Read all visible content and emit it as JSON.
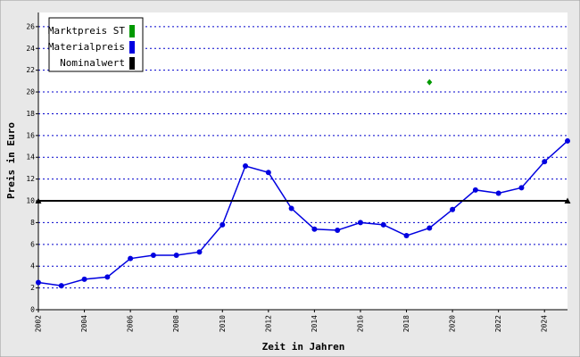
{
  "chart_data": {
    "type": "line",
    "xlabel": "Zeit in Jahren",
    "ylabel": "Preis in Euro",
    "xlim": [
      2002,
      2025
    ],
    "xticks": [
      2002,
      2004,
      2006,
      2008,
      2010,
      2012,
      2014,
      2016,
      2018,
      2020,
      2022,
      2024
    ],
    "ylim": [
      0,
      27.3
    ],
    "yticks": [
      0,
      2,
      4,
      6,
      8,
      10,
      12,
      14,
      16,
      18,
      20,
      22,
      24,
      26
    ],
    "grid": true,
    "legend": "top-left",
    "series": [
      {
        "name": "Marktpreis ST",
        "color": "#009900",
        "marker": "diamond",
        "line": false,
        "x": [
          2019
        ],
        "values": [
          20.9
        ]
      },
      {
        "name": "Materialpreis",
        "color": "#0000e0",
        "marker": "circle",
        "line": true,
        "x": [
          2002,
          2003,
          2004,
          2005,
          2006,
          2007,
          2008,
          2009,
          2010,
          2011,
          2012,
          2013,
          2014,
          2015,
          2016,
          2017,
          2018,
          2019,
          2020,
          2021,
          2022,
          2023,
          2024,
          2025
        ],
        "values": [
          2.5,
          2.2,
          2.8,
          3.0,
          4.7,
          5.0,
          5.0,
          5.3,
          7.8,
          13.2,
          12.6,
          9.3,
          7.4,
          7.3,
          8.0,
          7.8,
          6.8,
          7.5,
          9.2,
          11.0,
          10.7,
          11.2,
          13.6,
          15.5
        ]
      },
      {
        "name": "Nominalwert",
        "color": "#000000",
        "marker": "triangle",
        "line": true,
        "x": [
          2002,
          2025
        ],
        "values": [
          10,
          10
        ]
      }
    ]
  }
}
